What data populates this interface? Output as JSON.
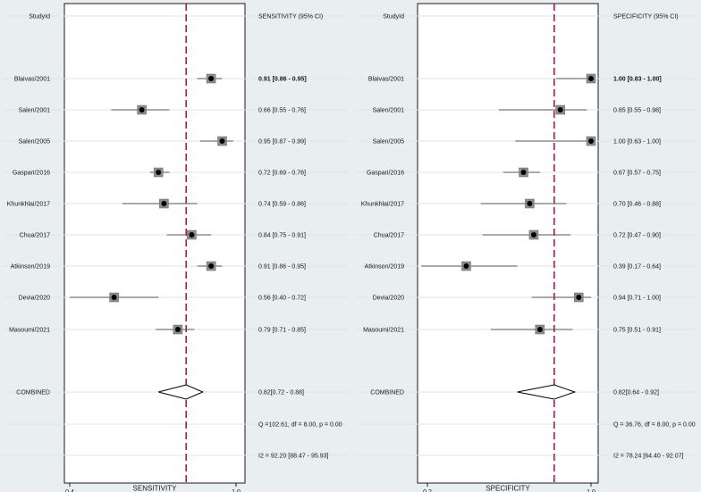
{
  "chart_data": [
    {
      "type": "forest",
      "id": "sensitivity",
      "header_left": "StudyId",
      "header_right": "SENSITIVITY (95% CI)",
      "xlabel": "SENSITIVITY",
      "xlim": [
        0.4,
        1.0
      ],
      "ticks": [
        0.4,
        1.0
      ],
      "tick_labels": [
        "0.4",
        "1.0"
      ],
      "reference_line": 0.82,
      "studies": [
        {
          "name": "Blaivas/2001",
          "est": 0.91,
          "lo": 0.86,
          "hi": 0.95,
          "text": "0.91 [0.86 - 0.95]",
          "bold": true
        },
        {
          "name": "Salen/2001",
          "est": 0.66,
          "lo": 0.55,
          "hi": 0.76,
          "text": "0.66 [0.55 - 0.76]"
        },
        {
          "name": "Salen/2005",
          "est": 0.95,
          "lo": 0.87,
          "hi": 0.99,
          "text": "0.95 [0.87 - 0.99]"
        },
        {
          "name": "Gaspari/2016",
          "est": 0.72,
          "lo": 0.69,
          "hi": 0.76,
          "text": "0.72 [0.69 - 0.76]"
        },
        {
          "name": "Khunkhlai/2017",
          "est": 0.74,
          "lo": 0.59,
          "hi": 0.86,
          "text": "0.74 [0.59 - 0.86]"
        },
        {
          "name": "Chua/2017",
          "est": 0.84,
          "lo": 0.75,
          "hi": 0.91,
          "text": "0.84 [0.75 - 0.91]"
        },
        {
          "name": "Atkinson/2019",
          "est": 0.91,
          "lo": 0.86,
          "hi": 0.95,
          "text": "0.91 [0.86 - 0.95]"
        },
        {
          "name": "Devia/2020",
          "est": 0.56,
          "lo": 0.4,
          "hi": 0.72,
          "text": "0.56 [0.40 - 0.72]"
        },
        {
          "name": "Masoumi/2021",
          "est": 0.79,
          "lo": 0.71,
          "hi": 0.85,
          "text": "0.79 [0.71 - 0.85]"
        }
      ],
      "combined": {
        "name": "COMBINED",
        "est": 0.82,
        "lo": 0.72,
        "hi": 0.88,
        "text": "0.82[0.72 - 0.88]"
      },
      "heterogeneity_q": "Q =102.61, df = 8.00, p =  0.00",
      "heterogeneity_i2": "I2 = 92.20 [88.47 - 95.93]"
    },
    {
      "type": "forest",
      "id": "specificity",
      "header_left": "StudyId",
      "header_right": "SPECIFICITY (95% CI)",
      "xlabel": "SPECIFICITY",
      "xlim": [
        0.2,
        1.0
      ],
      "ticks": [
        0.2,
        1.0
      ],
      "tick_labels": [
        "0.2",
        "1.0"
      ],
      "reference_line": 0.82,
      "studies": [
        {
          "name": "Blaivas/2001",
          "est": 1.0,
          "lo": 0.83,
          "hi": 1.0,
          "text": "1.00 [0.83 - 1.00]",
          "bold": true
        },
        {
          "name": "Salen/2001",
          "est": 0.85,
          "lo": 0.55,
          "hi": 0.98,
          "text": "0.85 [0.55 - 0.98]"
        },
        {
          "name": "Salen/2005",
          "est": 1.0,
          "lo": 0.63,
          "hi": 1.0,
          "text": "1.00 [0.63 - 1.00]"
        },
        {
          "name": "Gaspari/2016",
          "est": 0.67,
          "lo": 0.57,
          "hi": 0.75,
          "text": "0.67 [0.57 - 0.75]"
        },
        {
          "name": "Khunkhlai/2017",
          "est": 0.7,
          "lo": 0.46,
          "hi": 0.88,
          "text": "0.70 [0.46 - 0.88]"
        },
        {
          "name": "Chua/2017",
          "est": 0.72,
          "lo": 0.47,
          "hi": 0.9,
          "text": "0.72 [0.47 - 0.90]"
        },
        {
          "name": "Atkinson/2019",
          "est": 0.39,
          "lo": 0.17,
          "hi": 0.64,
          "text": "0.39 [0.17 - 0.64]"
        },
        {
          "name": "Devia/2020",
          "est": 0.94,
          "lo": 0.71,
          "hi": 1.0,
          "text": "0.94 [0.71 - 1.00]"
        },
        {
          "name": "Masoumi/2021",
          "est": 0.75,
          "lo": 0.51,
          "hi": 0.91,
          "text": "0.75 [0.51 - 0.91]"
        }
      ],
      "combined": {
        "name": "COMBINED",
        "est": 0.82,
        "lo": 0.64,
        "hi": 0.92,
        "text": "0.82[0.64 - 0.92]"
      },
      "heterogeneity_q": "Q = 36.76, df = 8.00, p =  0.00",
      "heterogeneity_i2": "I2 = 78.24 [64.40 - 92.07]"
    }
  ],
  "colors": {
    "background": "#e9eef1",
    "plot_bg": "#ffffff",
    "reference_line": "#b8174a",
    "gridline": "#dde5ea",
    "ink": "#1a1a1a",
    "box_fill": "#8d8d8d"
  }
}
